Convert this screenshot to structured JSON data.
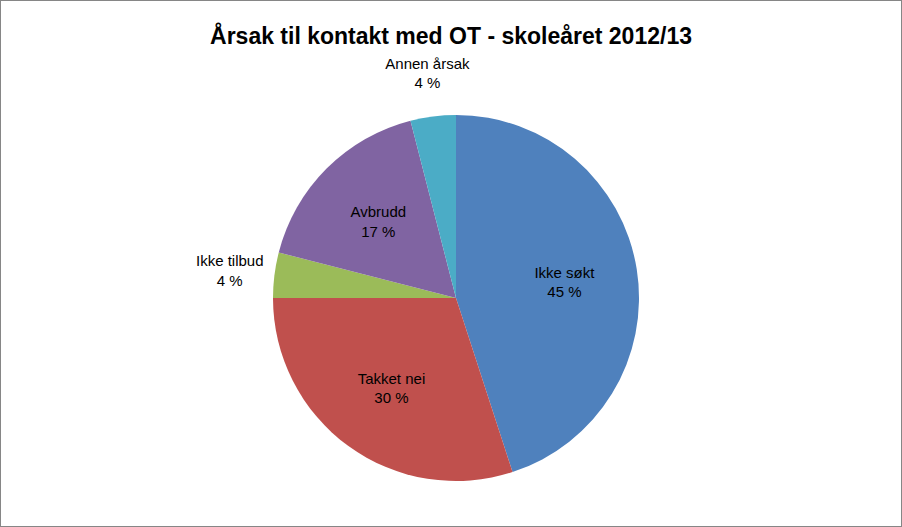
{
  "chart_data": {
    "type": "pie",
    "title": "Årsak til kontakt med OT - skoleåret 2012/13",
    "categories": [
      "Ikke søkt",
      "Takket nei",
      "Ikke tilbud",
      "Avbrudd",
      "Annen årsak"
    ],
    "values": [
      45,
      30,
      4,
      17,
      4
    ],
    "value_labels": [
      "45 %",
      "30 %",
      "4 %",
      "17 %",
      "4 %"
    ],
    "colors": [
      "#4f81bd",
      "#c0504d",
      "#9bbb59",
      "#8064a2",
      "#4bacc6"
    ],
    "data_labels": true
  }
}
